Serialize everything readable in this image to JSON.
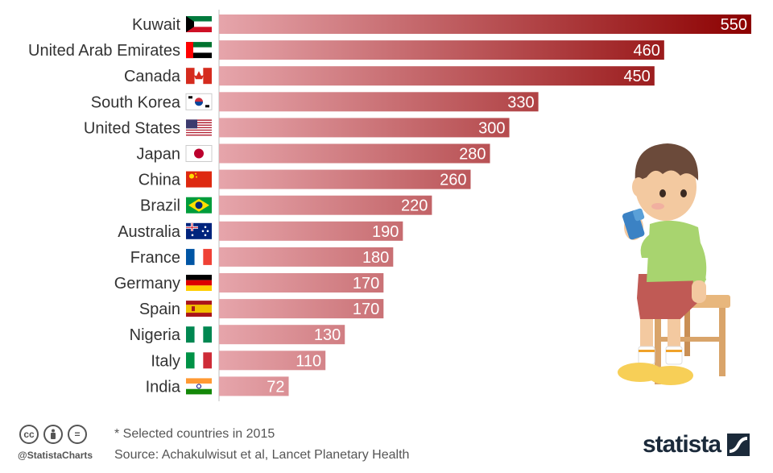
{
  "chart_data": {
    "type": "bar",
    "orientation": "horizontal",
    "categories": [
      "Kuwait",
      "United Arab Emirates",
      "Canada",
      "South Korea",
      "United States",
      "Japan",
      "China",
      "Brazil",
      "Australia",
      "France",
      "Germany",
      "Spain",
      "Nigeria",
      "Italy",
      "India"
    ],
    "values": [
      550,
      460,
      450,
      330,
      300,
      280,
      260,
      220,
      190,
      180,
      170,
      170,
      130,
      110,
      72
    ],
    "value_labels": [
      "550",
      "460",
      "450",
      "330",
      "300",
      "280",
      "260",
      "220",
      "190",
      "180",
      "170",
      "170",
      "130",
      "110",
      "72"
    ],
    "flags": [
      "flag-kuwait-icon",
      "flag-uae-icon",
      "flag-canada-icon",
      "flag-south-korea-icon",
      "flag-united-states-icon",
      "flag-japan-icon",
      "flag-china-icon",
      "flag-brazil-icon",
      "flag-australia-icon",
      "flag-france-icon",
      "flag-germany-icon",
      "flag-spain-icon",
      "flag-nigeria-icon",
      "flag-italy-icon",
      "flag-india-icon"
    ],
    "xlim": [
      0,
      550
    ],
    "grid": false,
    "colors": {
      "bar_start": "#e6a5ab",
      "bar_end": "#8c0000"
    }
  },
  "footer": {
    "note": "* Selected countries in 2015",
    "source": "Source: Achakulwisut et al, Lancet Planetary Health",
    "handle": "@StatistaCharts",
    "brand": "statista",
    "license_icons": [
      "cc-icon",
      "attribution-icon",
      "no-derivatives-icon"
    ]
  },
  "illustration": "child-with-inhaler-illustration"
}
